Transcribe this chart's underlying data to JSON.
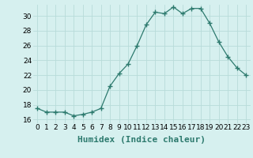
{
  "xlabel": "Humidex (Indice chaleur)",
  "ylabel": "",
  "x": [
    0,
    1,
    2,
    3,
    4,
    5,
    6,
    7,
    8,
    9,
    10,
    11,
    12,
    13,
    14,
    15,
    16,
    17,
    18,
    19,
    20,
    21,
    22,
    23
  ],
  "y": [
    17.5,
    17.0,
    17.0,
    17.0,
    16.5,
    16.7,
    17.0,
    17.5,
    20.5,
    22.2,
    23.5,
    26.0,
    28.8,
    30.5,
    30.3,
    31.2,
    30.3,
    31.0,
    31.0,
    29.0,
    26.5,
    24.5,
    23.0,
    22.0
  ],
  "line_color": "#2d7a6e",
  "marker": "+",
  "marker_size": 4,
  "bg_color": "#d6f0ef",
  "grid_color": "#b8dbd9",
  "ylim": [
    15.5,
    31.5
  ],
  "xlim": [
    -0.5,
    23.5
  ],
  "yticks": [
    16,
    18,
    20,
    22,
    24,
    26,
    28,
    30
  ],
  "xtick_labels": [
    "0",
    "1",
    "2",
    "3",
    "4",
    "5",
    "6",
    "7",
    "8",
    "9",
    "10",
    "11",
    "12",
    "13",
    "14",
    "15",
    "16",
    "17",
    "18",
    "19",
    "20",
    "21",
    "22",
    "23"
  ],
  "xlabel_fontsize": 8,
  "tick_fontsize": 6.5
}
